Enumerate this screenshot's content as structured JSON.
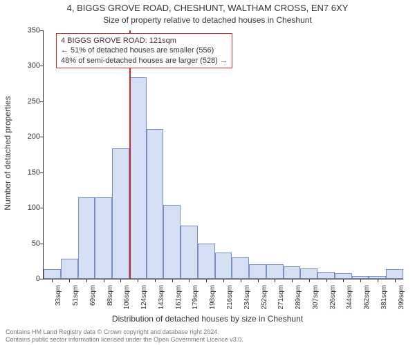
{
  "header": {
    "address": "4, BIGGS GROVE ROAD, CHESHUNT, WALTHAM CROSS, EN7 6XY",
    "subtitle": "Size of property relative to detached houses in Cheshunt"
  },
  "chart": {
    "type": "histogram",
    "ylabel": "Number of detached properties",
    "xlabel": "Distribution of detached houses by size in Cheshunt",
    "ylim": [
      0,
      350
    ],
    "ytick_step": 50,
    "background_color": "#ffffff",
    "axis_color": "#333333",
    "bar_fill": "#d6e0f5",
    "bar_border": "#7a8fbf",
    "bar_width_ratio": 1.0,
    "categories": [
      "33sqm",
      "51sqm",
      "69sqm",
      "88sqm",
      "106sqm",
      "124sqm",
      "143sqm",
      "161sqm",
      "179sqm",
      "198sqm",
      "216sqm",
      "234sqm",
      "252sqm",
      "271sqm",
      "289sqm",
      "307sqm",
      "326sqm",
      "344sqm",
      "362sqm",
      "381sqm",
      "399sqm"
    ],
    "values": [
      14,
      28,
      115,
      115,
      184,
      284,
      211,
      104,
      75,
      50,
      37,
      30,
      20,
      20,
      18,
      15,
      10,
      8,
      4,
      4,
      14
    ],
    "tick_font_size": 10,
    "label_font_size": 12
  },
  "marker": {
    "position_index": 5.0,
    "color": "#d62728"
  },
  "annotation": {
    "line1": "4 BIGGS GROVE ROAD: 121sqm",
    "line2": "← 51% of detached houses are smaller (556)",
    "line3": "48% of semi-detached houses are larger (528) →",
    "border_color": "#d62728",
    "background": "#ffffff",
    "font_size": 11
  },
  "footer": {
    "line1": "Contains HM Land Registry data © Crown copyright and database right 2024.",
    "line2": "Contains public sector information licensed under the Open Government Licence v3.0."
  }
}
